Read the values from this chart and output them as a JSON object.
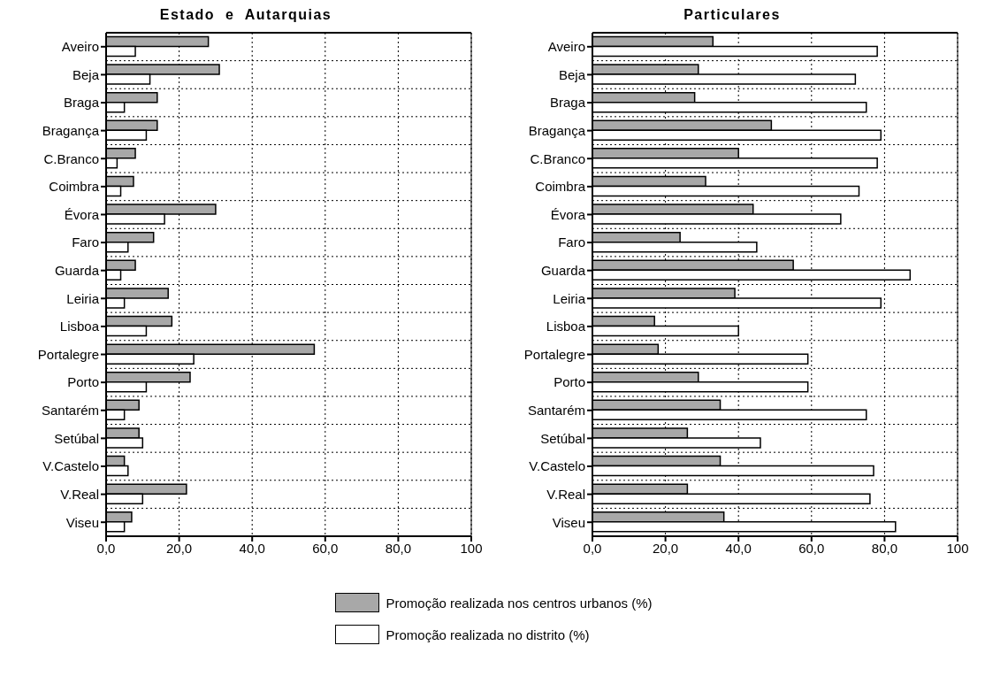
{
  "chart_data": [
    {
      "type": "bar",
      "orientation": "horizontal",
      "title": "Estado  e  Autarquias",
      "categories": [
        "Aveiro",
        "Beja",
        "Braga",
        "Bragança",
        "C.Branco",
        "Coimbra",
        "Évora",
        "Faro",
        "Guarda",
        "Leiria",
        "Lisboa",
        "Portalegre",
        "Porto",
        "Santarém",
        "Setúbal",
        "V.Castelo",
        "V.Real",
        "Viseu"
      ],
      "series": [
        {
          "name": "Promoção realizada nos centros urbanos (%)",
          "color": "#a8a8a8",
          "values": [
            28,
            31,
            14,
            14,
            8,
            7.5,
            30,
            13,
            8,
            17,
            18,
            57,
            23,
            9,
            9,
            5,
            22,
            7
          ]
        },
        {
          "name": "Promoção realizada no distrito (%)",
          "color": "#ffffff",
          "values": [
            8,
            12,
            5,
            11,
            3,
            4,
            16,
            6,
            4,
            5,
            11,
            24,
            11,
            5,
            10,
            6,
            10,
            5
          ]
        }
      ],
      "xlim": [
        0,
        100
      ],
      "xticks": [
        {
          "value": 0,
          "label": "0,0"
        },
        {
          "value": 20,
          "label": "20,0"
        },
        {
          "value": 40,
          "label": "40,0"
        },
        {
          "value": 60,
          "label": "60,0"
        },
        {
          "value": 80,
          "label": "80,0"
        },
        {
          "value": 100,
          "label": "100"
        }
      ],
      "grid": true,
      "legend": "bottom"
    },
    {
      "type": "bar",
      "orientation": "horizontal",
      "title": "Particulares",
      "categories": [
        "Aveiro",
        "Beja",
        "Braga",
        "Bragança",
        "C.Branco",
        "Coimbra",
        "Évora",
        "Faro",
        "Guarda",
        "Leiria",
        "Lisboa",
        "Portalegre",
        "Porto",
        "Santarém",
        "Setúbal",
        "V.Castelo",
        "V.Real",
        "Viseu"
      ],
      "series": [
        {
          "color": "#a8a8a8",
          "values": [
            33,
            29,
            28,
            49,
            40,
            31,
            44,
            24,
            55,
            39,
            17,
            18,
            29,
            35,
            26,
            35,
            26,
            36
          ]
        },
        {
          "color": "#ffffff",
          "values": [
            78,
            72,
            75,
            79,
            78,
            73,
            68,
            45,
            87,
            79,
            40,
            59,
            59,
            75,
            46,
            77,
            76,
            83
          ]
        }
      ],
      "xlim": [
        0,
        100
      ],
      "xticks": [
        {
          "value": 0,
          "label": "0,0"
        },
        {
          "value": 20,
          "label": "20,0"
        },
        {
          "value": 40,
          "label": "40,0"
        },
        {
          "value": 60,
          "label": "60,0"
        },
        {
          "value": 80,
          "label": "80,0"
        },
        {
          "value": 100,
          "label": "100"
        }
      ],
      "grid": true
    }
  ]
}
